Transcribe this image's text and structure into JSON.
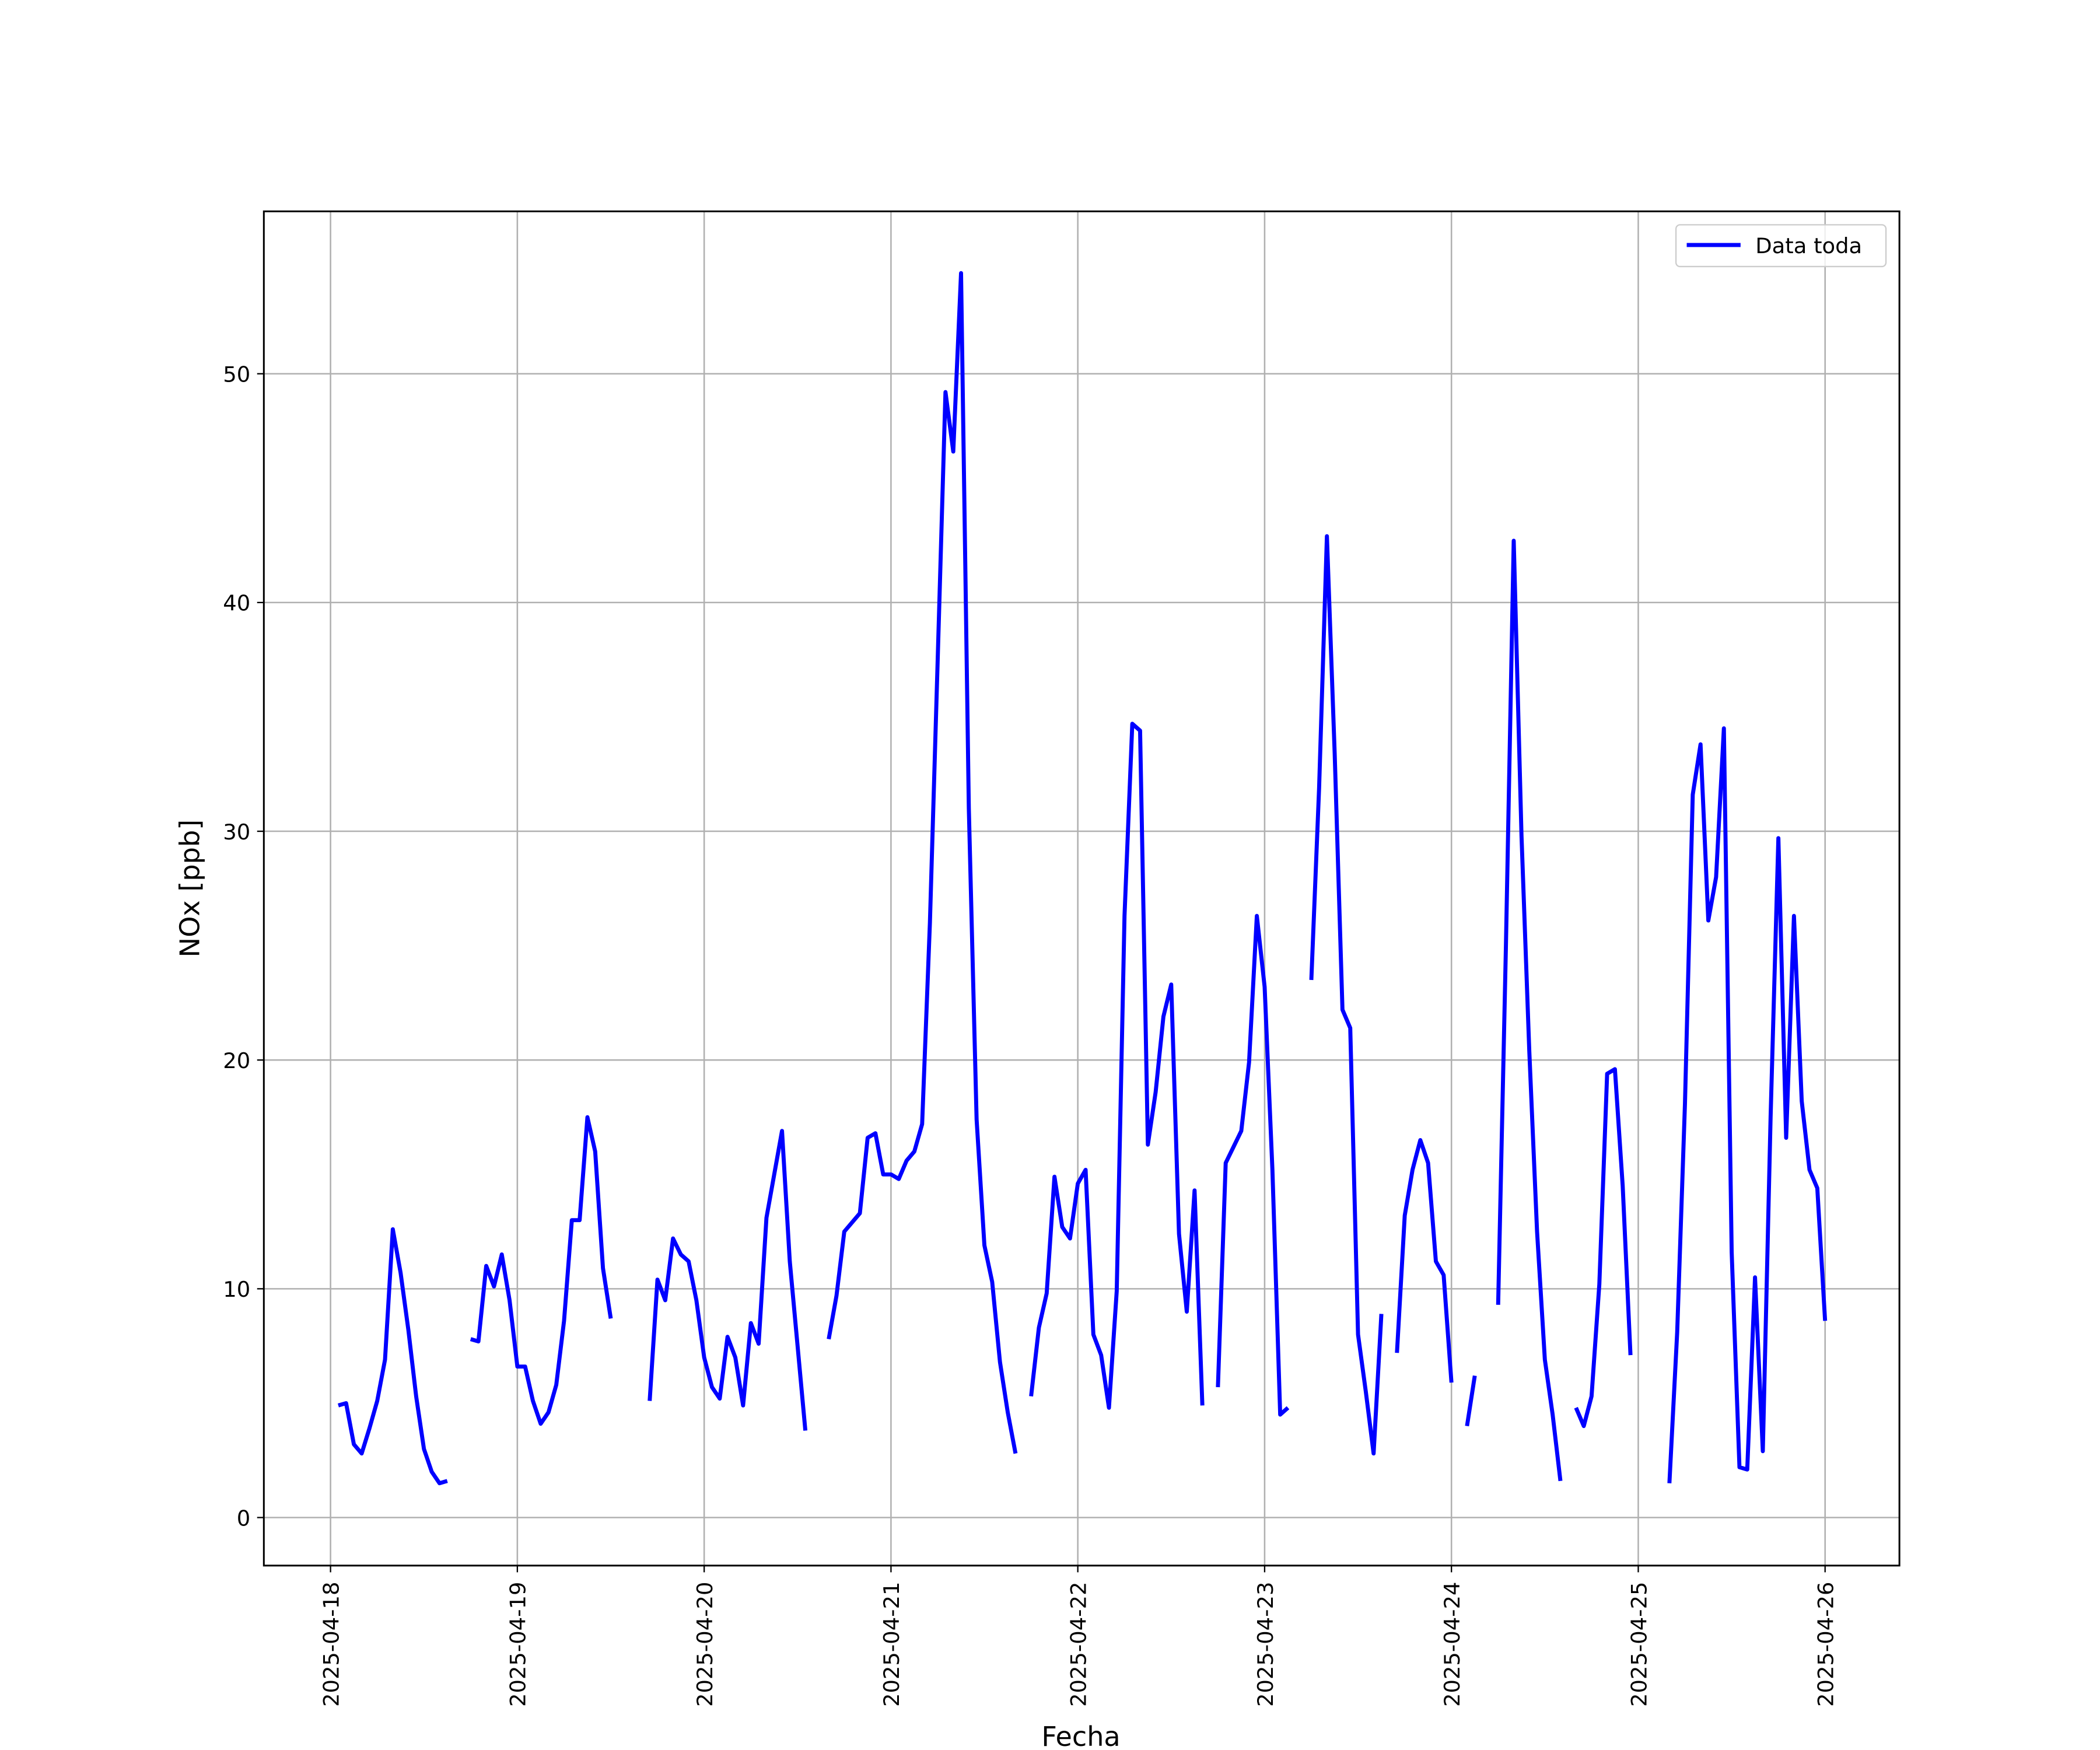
{
  "chart_data": {
    "type": "line",
    "xlabel": "Fecha",
    "ylabel": "NOx [ppb]",
    "x": [
      "2025-04-18T01:00",
      "2025-04-18T02:00",
      "2025-04-18T03:00",
      "2025-04-18T04:00",
      "2025-04-18T05:00",
      "2025-04-18T06:00",
      "2025-04-18T07:00",
      "2025-04-18T08:00",
      "2025-04-18T09:00",
      "2025-04-18T10:00",
      "2025-04-18T11:00",
      "2025-04-18T12:00",
      "2025-04-18T13:00",
      "2025-04-18T14:00",
      "2025-04-18T15:00",
      "2025-04-18T16:00",
      "2025-04-18T17:00",
      "2025-04-18T18:00",
      "2025-04-18T19:00",
      "2025-04-18T20:00",
      "2025-04-18T21:00",
      "2025-04-18T22:00",
      "2025-04-18T23:00",
      "2025-04-19T00:00",
      "2025-04-19T01:00",
      "2025-04-19T02:00",
      "2025-04-19T03:00",
      "2025-04-19T04:00",
      "2025-04-19T05:00",
      "2025-04-19T06:00",
      "2025-04-19T07:00",
      "2025-04-19T08:00",
      "2025-04-19T09:00",
      "2025-04-19T10:00",
      "2025-04-19T11:00",
      "2025-04-19T12:00",
      "2025-04-19T13:00",
      "2025-04-19T14:00",
      "2025-04-19T15:00",
      "2025-04-19T16:00",
      "2025-04-19T17:00",
      "2025-04-19T18:00",
      "2025-04-19T19:00",
      "2025-04-19T20:00",
      "2025-04-19T21:00",
      "2025-04-19T22:00",
      "2025-04-19T23:00",
      "2025-04-20T00:00",
      "2025-04-20T01:00",
      "2025-04-20T02:00",
      "2025-04-20T03:00",
      "2025-04-20T04:00",
      "2025-04-20T05:00",
      "2025-04-20T06:00",
      "2025-04-20T07:00",
      "2025-04-20T08:00",
      "2025-04-20T09:00",
      "2025-04-20T10:00",
      "2025-04-20T11:00",
      "2025-04-20T12:00",
      "2025-04-20T13:00",
      "2025-04-20T14:00",
      "2025-04-20T15:00",
      "2025-04-20T16:00",
      "2025-04-20T17:00",
      "2025-04-20T18:00",
      "2025-04-20T19:00",
      "2025-04-20T20:00",
      "2025-04-20T21:00",
      "2025-04-20T22:00",
      "2025-04-20T23:00",
      "2025-04-21T00:00",
      "2025-04-21T01:00",
      "2025-04-21T02:00",
      "2025-04-21T03:00",
      "2025-04-21T04:00",
      "2025-04-21T05:00",
      "2025-04-21T06:00",
      "2025-04-21T07:00",
      "2025-04-21T08:00",
      "2025-04-21T09:00",
      "2025-04-21T10:00",
      "2025-04-21T11:00",
      "2025-04-21T12:00",
      "2025-04-21T13:00",
      "2025-04-21T14:00",
      "2025-04-21T15:00",
      "2025-04-21T16:00",
      "2025-04-21T17:00",
      "2025-04-21T18:00",
      "2025-04-21T19:00",
      "2025-04-21T20:00",
      "2025-04-21T21:00",
      "2025-04-21T22:00",
      "2025-04-21T23:00",
      "2025-04-22T00:00",
      "2025-04-22T01:00",
      "2025-04-22T02:00",
      "2025-04-22T03:00",
      "2025-04-22T04:00",
      "2025-04-22T05:00",
      "2025-04-22T06:00",
      "2025-04-22T07:00",
      "2025-04-22T08:00",
      "2025-04-22T09:00",
      "2025-04-22T10:00",
      "2025-04-22T11:00",
      "2025-04-22T12:00",
      "2025-04-22T13:00",
      "2025-04-22T14:00",
      "2025-04-22T15:00",
      "2025-04-22T16:00",
      "2025-04-22T17:00",
      "2025-04-22T18:00",
      "2025-04-22T19:00",
      "2025-04-22T20:00",
      "2025-04-22T21:00",
      "2025-04-22T22:00",
      "2025-04-22T23:00",
      "2025-04-23T00:00",
      "2025-04-23T01:00",
      "2025-04-23T02:00",
      "2025-04-23T03:00",
      "2025-04-23T04:00",
      "2025-04-23T05:00",
      "2025-04-23T06:00",
      "2025-04-23T07:00",
      "2025-04-23T08:00",
      "2025-04-23T09:00",
      "2025-04-23T10:00",
      "2025-04-23T11:00",
      "2025-04-23T12:00",
      "2025-04-23T13:00",
      "2025-04-23T14:00",
      "2025-04-23T15:00",
      "2025-04-23T16:00",
      "2025-04-23T17:00",
      "2025-04-23T18:00",
      "2025-04-23T19:00",
      "2025-04-23T20:00",
      "2025-04-23T21:00",
      "2025-04-23T22:00",
      "2025-04-23T23:00",
      "2025-04-24T00:00",
      "2025-04-24T01:00",
      "2025-04-24T02:00",
      "2025-04-24T03:00",
      "2025-04-24T04:00",
      "2025-04-24T05:00",
      "2025-04-24T06:00",
      "2025-04-24T07:00",
      "2025-04-24T08:00",
      "2025-04-24T09:00",
      "2025-04-24T10:00",
      "2025-04-24T11:00",
      "2025-04-24T12:00",
      "2025-04-24T13:00",
      "2025-04-24T14:00",
      "2025-04-24T15:00",
      "2025-04-24T16:00",
      "2025-04-24T17:00",
      "2025-04-24T18:00",
      "2025-04-24T19:00",
      "2025-04-24T20:00",
      "2025-04-24T21:00",
      "2025-04-24T22:00",
      "2025-04-24T23:00",
      "2025-04-25T00:00",
      "2025-04-25T01:00",
      "2025-04-25T02:00",
      "2025-04-25T03:00",
      "2025-04-25T04:00",
      "2025-04-25T05:00",
      "2025-04-25T06:00",
      "2025-04-25T07:00",
      "2025-04-25T08:00",
      "2025-04-25T09:00",
      "2025-04-25T10:00",
      "2025-04-25T11:00",
      "2025-04-25T12:00",
      "2025-04-25T13:00",
      "2025-04-25T14:00",
      "2025-04-25T15:00",
      "2025-04-25T16:00",
      "2025-04-25T17:00",
      "2025-04-25T18:00",
      "2025-04-25T19:00",
      "2025-04-25T20:00",
      "2025-04-25T21:00",
      "2025-04-25T22:00",
      "2025-04-25T23:00",
      "2025-04-26T00:00"
    ],
    "series": [
      {
        "name": "Data toda",
        "color": "#0000ff",
        "values": [
          4.9,
          5.0,
          3.2,
          2.8,
          3.9,
          5.1,
          6.9,
          12.6,
          10.7,
          8.2,
          5.3,
          3.0,
          2.0,
          1.5,
          1.6,
          null,
          null,
          7.8,
          7.7,
          11.0,
          10.1,
          11.5,
          9.5,
          6.6,
          6.6,
          5.1,
          4.1,
          4.6,
          5.8,
          8.6,
          13.0,
          13.0,
          17.5,
          16.0,
          10.9,
          8.7,
          null,
          null,
          null,
          null,
          5.1,
          10.4,
          9.5,
          12.2,
          11.5,
          11.2,
          9.5,
          7.0,
          5.7,
          5.2,
          7.9,
          7.0,
          4.9,
          8.5,
          7.6,
          13.1,
          15.0,
          16.9,
          11.2,
          7.5,
          3.8,
          null,
          null,
          7.8,
          9.7,
          12.5,
          12.9,
          13.3,
          16.6,
          16.8,
          15.0,
          15.0,
          14.8,
          15.6,
          16.0,
          17.2,
          26.0,
          37.5,
          49.2,
          46.6,
          54.4,
          31.0,
          17.4,
          11.9,
          10.3,
          6.8,
          4.6,
          2.8,
          null,
          5.3,
          8.3,
          9.8,
          14.9,
          12.7,
          12.2,
          14.6,
          15.2,
          8.0,
          7.1,
          4.8,
          9.9,
          26.3,
          34.7,
          34.4,
          16.3,
          18.6,
          21.9,
          23.3,
          12.4,
          9.0,
          14.3,
          4.9,
          null,
          5.7,
          15.5,
          16.2,
          16.9,
          19.9,
          26.3,
          23.2,
          15.2,
          4.5,
          4.8,
          null,
          null,
          23.5,
          31.9,
          42.9,
          33.4,
          22.2,
          21.4,
          8.0,
          5.5,
          2.8,
          8.9,
          null,
          7.2,
          13.2,
          15.2,
          16.5,
          15.5,
          11.2,
          10.6,
          5.9,
          null,
          4.0,
          6.2,
          null,
          null,
          9.3,
          25.0,
          42.7,
          29.8,
          20.4,
          12.5,
          6.9,
          4.5,
          1.6,
          null,
          4.8,
          4.0,
          5.3,
          10.2,
          19.4,
          19.6,
          14.5,
          7.1,
          null,
          null,
          null,
          null,
          1.5,
          8.1,
          18.1,
          31.6,
          33.8,
          26.1,
          28.0,
          34.5,
          11.6,
          2.2,
          2.1,
          10.5,
          2.9,
          17.5,
          29.7,
          16.6,
          26.3,
          18.2,
          15.2,
          14.4,
          8.6
        ]
      }
    ],
    "xlim": [
      "2025-04-17T15:26",
      "2025-04-26T09:33"
    ],
    "xticks": [
      "2025-04-18",
      "2025-04-19",
      "2025-04-20",
      "2025-04-21",
      "2025-04-22",
      "2025-04-23",
      "2025-04-24",
      "2025-04-25",
      "2025-04-26"
    ],
    "ylim": [
      -2.1,
      57.1
    ],
    "yticks": [
      0,
      10,
      20,
      30,
      40,
      50
    ],
    "grid": true,
    "legend_loc": "upper right"
  }
}
